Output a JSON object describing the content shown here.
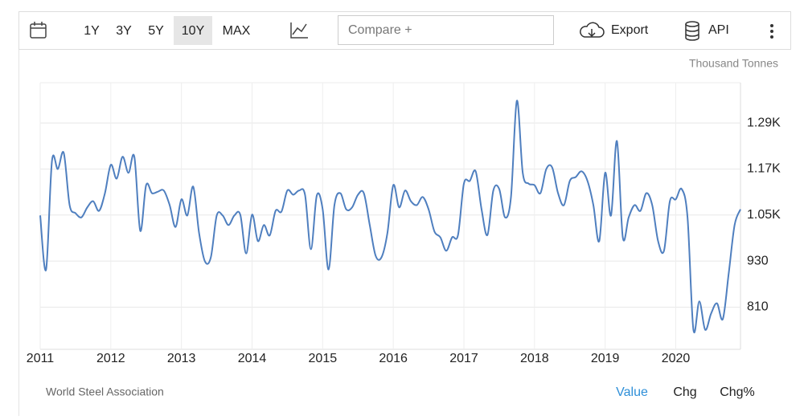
{
  "toolbar": {
    "ranges": [
      "1Y",
      "3Y",
      "5Y",
      "10Y",
      "MAX"
    ],
    "selected_range": 3,
    "compare_placeholder": "Compare +",
    "export": "Export",
    "api": "API"
  },
  "chart_data": {
    "type": "line",
    "y_axis_label": "Thousand Tonnes",
    "source": "World Steel Association",
    "categories": [
      "2011",
      null,
      null,
      null,
      null,
      null,
      null,
      null,
      null,
      null,
      null,
      null,
      "2012",
      null,
      null,
      null,
      null,
      null,
      null,
      null,
      null,
      null,
      null,
      null,
      "2013",
      null,
      null,
      null,
      null,
      null,
      null,
      null,
      null,
      null,
      null,
      null,
      "2014",
      null,
      null,
      null,
      null,
      null,
      null,
      null,
      null,
      null,
      null,
      null,
      "2015",
      null,
      null,
      null,
      null,
      null,
      null,
      null,
      null,
      null,
      null,
      null,
      "2016",
      null,
      null,
      null,
      null,
      null,
      null,
      null,
      null,
      null,
      null,
      null,
      "2017",
      null,
      null,
      null,
      null,
      null,
      null,
      null,
      null,
      null,
      null,
      null,
      "2018",
      null,
      null,
      null,
      null,
      null,
      null,
      null,
      null,
      null,
      null,
      null,
      "2019",
      null,
      null,
      null,
      null,
      null,
      null,
      null,
      null,
      null,
      null,
      null,
      "2020",
      null,
      null,
      null,
      null,
      null,
      null,
      null,
      null,
      null,
      null,
      null
    ],
    "series": [
      {
        "name": "Value",
        "color": "#4f7fbf",
        "values": [
          1049,
          908,
          1191,
          1170,
          1212,
          1076,
          1055,
          1044,
          1070,
          1086,
          1061,
          1107,
          1181,
          1145,
          1202,
          1160,
          1202,
          1009,
          1128,
          1107,
          1111,
          1114,
          1076,
          1019,
          1091,
          1049,
          1124,
          1003,
          929,
          940,
          1049,
          1049,
          1024,
          1049,
          1051,
          950,
          1051,
          982,
          1024,
          997,
          1061,
          1059,
          1114,
          1103,
          1114,
          1103,
          961,
          1101,
          1065,
          908,
          1076,
          1107,
          1065,
          1070,
          1103,
          1107,
          1024,
          944,
          940,
          1003,
          1128,
          1070,
          1114,
          1086,
          1076,
          1097,
          1065,
          1007,
          992,
          957,
          992,
          998,
          1132,
          1139,
          1164,
          1065,
          998,
          1114,
          1118,
          1044,
          1097,
          1348,
          1160,
          1132,
          1128,
          1107,
          1170,
          1174,
          1107,
          1076,
          1139,
          1149,
          1164,
          1139,
          1076,
          982,
          1160,
          1049,
          1243,
          992,
          1044,
          1076,
          1061,
          1107,
          1076,
          982,
          957,
          1086,
          1091,
          1118,
          1044,
          751,
          825,
          751,
          793,
          820,
          779,
          898,
          1024,
          1065
        ]
      }
    ],
    "ylim": [
      700,
      1395
    ],
    "yticks": [
      810,
      930,
      {
        "value": 1050,
        "label": "1.05K"
      },
      {
        "value": 1170,
        "label": "1.17K"
      },
      {
        "value": 1290,
        "label": "1.29K"
      }
    ],
    "grid": true,
    "footer_tabs": [
      "Value",
      "Chg",
      "Chg%"
    ],
    "active_tab": 0
  }
}
